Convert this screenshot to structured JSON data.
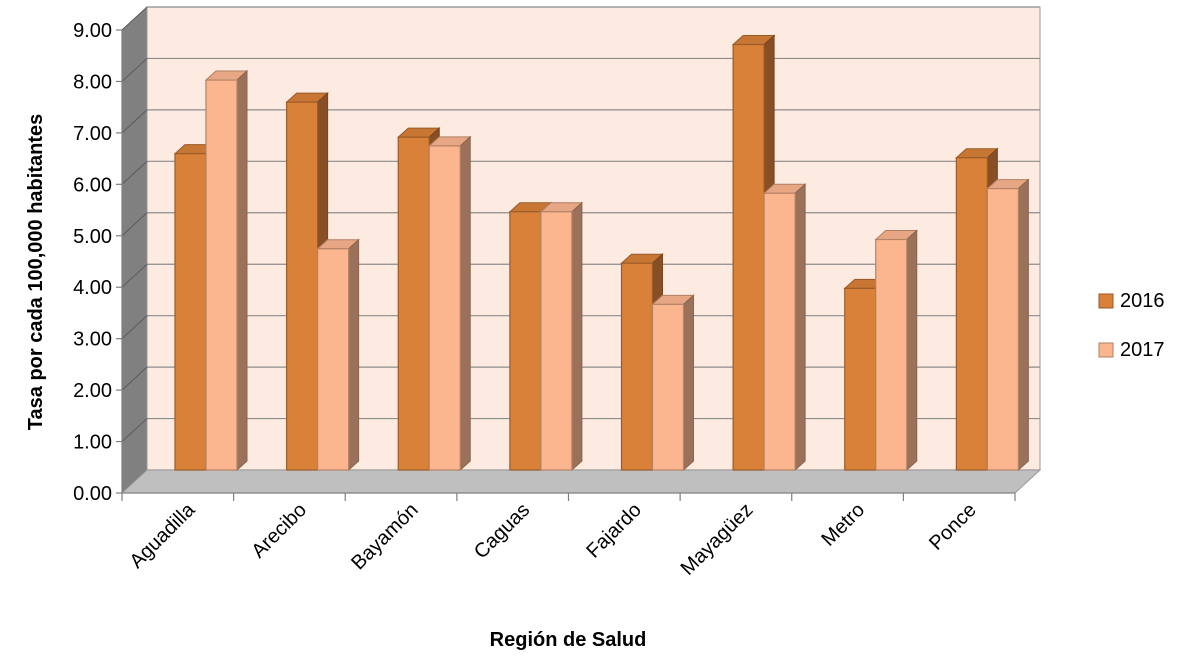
{
  "chart_data": {
    "type": "bar",
    "style": "3d-clustered-column",
    "title": "",
    "xlabel": "Región de Salud",
    "ylabel": "Tasa por cada 100,000 habitantes",
    "categories": [
      "Aguadilla",
      "Arecibo",
      "Bayamón",
      "Caguas",
      "Fajardo",
      "Mayagüez",
      "Metro",
      "Ponce"
    ],
    "series": [
      {
        "name": "2016",
        "values": [
          6.15,
          7.15,
          6.47,
          5.02,
          4.02,
          8.27,
          3.53,
          6.07
        ]
      },
      {
        "name": "2017",
        "values": [
          7.58,
          4.3,
          6.3,
          5.02,
          3.22,
          5.38,
          4.48,
          5.47
        ]
      }
    ],
    "ylim": [
      0,
      9
    ],
    "yticks": [
      "0.00",
      "1.00",
      "2.00",
      "3.00",
      "4.00",
      "5.00",
      "6.00",
      "7.00",
      "8.00",
      "9.00"
    ],
    "grid": true,
    "legend_position": "right",
    "colors": {
      "2016": "#D98039",
      "2017": "#FBB68F",
      "wall": "#FDEBE2",
      "side_wall": "#808080",
      "floor": "#BFBFBF"
    }
  }
}
